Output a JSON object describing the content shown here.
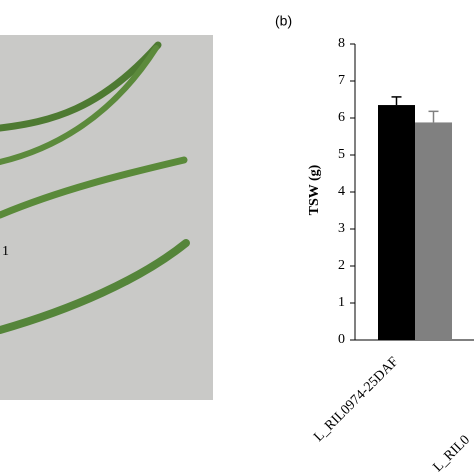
{
  "photo_label": "1",
  "chart_data": {
    "type": "bar",
    "title": "(b)",
    "y_label": "TSW (g)",
    "categories": [
      "L_RIL0974-25DAF",
      "L_RIL0"
    ],
    "values": [
      6.35,
      5.88
    ],
    "errors": [
      0.22,
      0.3
    ],
    "colors": [
      "#000000",
      "#808080"
    ],
    "ylim": [
      0,
      8
    ],
    "yticks": [
      0,
      1,
      2,
      3,
      4,
      5,
      6,
      7,
      8
    ],
    "grid": false
  }
}
